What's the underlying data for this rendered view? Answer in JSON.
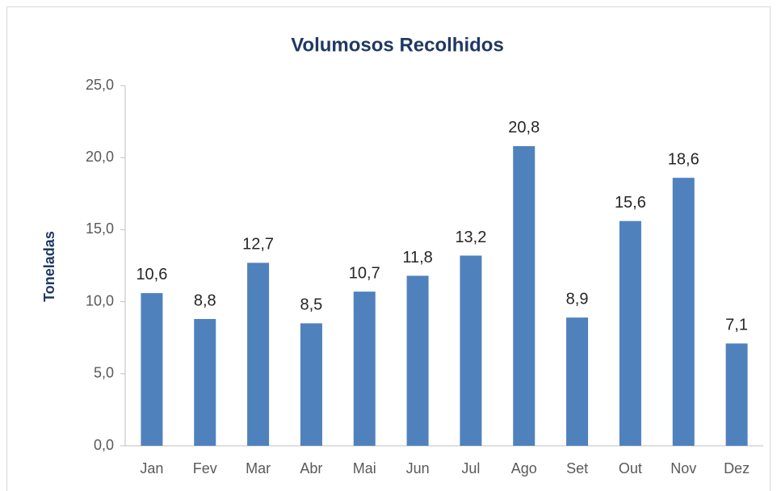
{
  "chart_data": {
    "type": "bar",
    "title": "Volumosos Recolhidos",
    "y_label": "Toneladas",
    "categories": [
      "Jan",
      "Fev",
      "Mar",
      "Abr",
      "Mai",
      "Jun",
      "Jul",
      "Ago",
      "Set",
      "Out",
      "Nov",
      "Dez"
    ],
    "values": [
      10.6,
      8.8,
      12.7,
      8.5,
      10.7,
      11.8,
      13.2,
      20.8,
      8.9,
      15.6,
      18.6,
      7.1
    ],
    "value_labels": [
      "10,6",
      "8,8",
      "12,7",
      "8,5",
      "10,7",
      "11,8",
      "13,2",
      "20,8",
      "8,9",
      "15,6",
      "18,6",
      "7,1"
    ],
    "color": "#4f81bd",
    "ylim": [
      0,
      25
    ],
    "yticks": [
      {
        "value": 0,
        "label": "0,0"
      },
      {
        "value": 5,
        "label": "5,0"
      },
      {
        "value": 10,
        "label": "10,0"
      },
      {
        "value": 15,
        "label": "15,0"
      },
      {
        "value": 20,
        "label": "20,0"
      },
      {
        "value": 25,
        "label": "25,0"
      }
    ],
    "grid": false
  }
}
